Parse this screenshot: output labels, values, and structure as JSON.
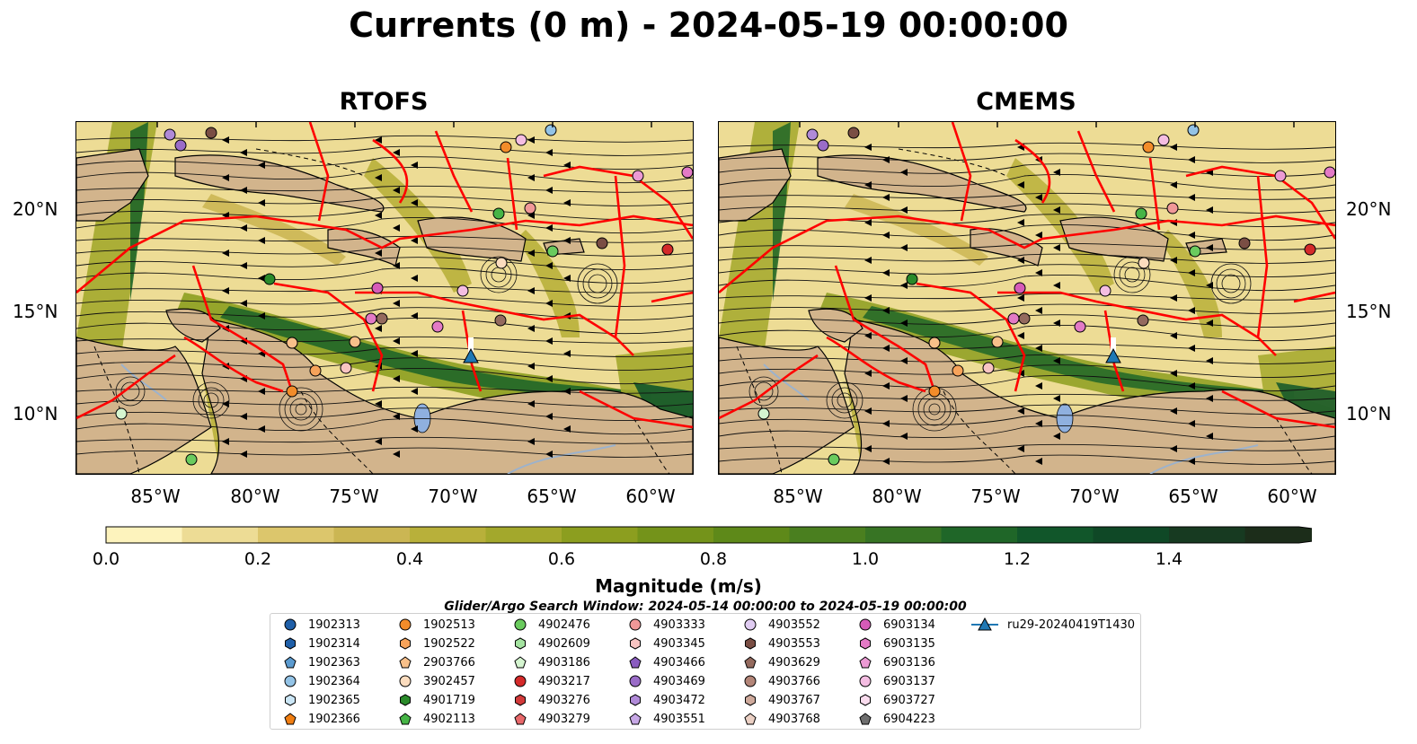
{
  "title": "Currents (0 m) - 2024-05-19 00:00:00",
  "panels": [
    {
      "title": "RTOFS"
    },
    {
      "title": "CMEMS"
    }
  ],
  "lat_labels": [
    "20°N",
    "15°N",
    "10°N"
  ],
  "lon_labels": [
    "85°W",
    "80°W",
    "75°W",
    "70°W",
    "65°W",
    "60°W"
  ],
  "colorbar": {
    "label": "Magnitude (m/s)",
    "ticks": [
      "0.0",
      "0.2",
      "0.4",
      "0.6",
      "0.8",
      "1.0",
      "1.2",
      "1.4"
    ],
    "colors": [
      "#fdf3bd",
      "#eddc95",
      "#dcc66c",
      "#cbb653",
      "#b8b03a",
      "#a3a82c",
      "#8c9e1f",
      "#74931a",
      "#5e8919",
      "#4a7f1f",
      "#377424",
      "#1f6628",
      "#11562a",
      "#0f4826",
      "#173a21",
      "#1c2d1a"
    ]
  },
  "search_window": "Glider/Argo Search Window: 2024-05-14 00:00:00 to 2024-05-19 00:00:00",
  "legend": [
    {
      "label": "1902313",
      "color": "#1f5fa8",
      "marker": "circle"
    },
    {
      "label": "1902314",
      "color": "#1f5fa8",
      "marker": "hexagon"
    },
    {
      "label": "1902363",
      "color": "#5b9bd0",
      "marker": "pentagon"
    },
    {
      "label": "1902364",
      "color": "#93c3e6",
      "marker": "circle"
    },
    {
      "label": "1902365",
      "color": "#cbe6f6",
      "marker": "hexagon"
    },
    {
      "label": "1902366",
      "color": "#f07e12",
      "marker": "pentagon"
    },
    {
      "label": "1902513",
      "color": "#f28c2a",
      "marker": "circle"
    },
    {
      "label": "1902522",
      "color": "#f7a35a",
      "marker": "hexagon"
    },
    {
      "label": "2903766",
      "color": "#f8c08a",
      "marker": "pentagon"
    },
    {
      "label": "3902457",
      "color": "#fbdcbe",
      "marker": "circle"
    },
    {
      "label": "4901719",
      "color": "#2a8a2a",
      "marker": "hexagon"
    },
    {
      "label": "4902113",
      "color": "#46b446",
      "marker": "pentagon"
    },
    {
      "label": "4902476",
      "color": "#6acb5e",
      "marker": "circle"
    },
    {
      "label": "4902609",
      "color": "#a4e3a0",
      "marker": "hexagon"
    },
    {
      "label": "4903186",
      "color": "#d5f5d0",
      "marker": "pentagon"
    },
    {
      "label": "4903217",
      "color": "#d42a2a",
      "marker": "circle"
    },
    {
      "label": "4903276",
      "color": "#d23a3a",
      "marker": "hexagon"
    },
    {
      "label": "4903279",
      "color": "#e8686a",
      "marker": "pentagon"
    },
    {
      "label": "4903333",
      "color": "#f09898",
      "marker": "circle"
    },
    {
      "label": "4903345",
      "color": "#f8c4c2",
      "marker": "hexagon"
    },
    {
      "label": "4903466",
      "color": "#8a5cc0",
      "marker": "pentagon"
    },
    {
      "label": "4903469",
      "color": "#9a6cc8",
      "marker": "circle"
    },
    {
      "label": "4903472",
      "color": "#b08ad8",
      "marker": "hexagon"
    },
    {
      "label": "4903551",
      "color": "#c7a8e6",
      "marker": "pentagon"
    },
    {
      "label": "4903552",
      "color": "#e0ccf2",
      "marker": "circle"
    },
    {
      "label": "4903553",
      "color": "#7a4e44",
      "marker": "hexagon"
    },
    {
      "label": "4903629",
      "color": "#946a5e",
      "marker": "pentagon"
    },
    {
      "label": "4903766",
      "color": "#b38578",
      "marker": "circle"
    },
    {
      "label": "4903767",
      "color": "#cfaa9c",
      "marker": "hexagon"
    },
    {
      "label": "4903768",
      "color": "#ebd0c4",
      "marker": "pentagon"
    },
    {
      "label": "6903134",
      "color": "#d65bb8",
      "marker": "circle"
    },
    {
      "label": "6903135",
      "color": "#e37ac6",
      "marker": "hexagon"
    },
    {
      "label": "6903136",
      "color": "#ec9ad4",
      "marker": "pentagon"
    },
    {
      "label": "6903137",
      "color": "#f4bde2",
      "marker": "circle"
    },
    {
      "label": "6903727",
      "color": "#fadcee",
      "marker": "hexagon"
    },
    {
      "label": "6904223",
      "color": "#6e6e6e",
      "marker": "pentagon"
    },
    {
      "label": "ru29-20240419T1430",
      "color": "#1f78b4",
      "marker": "triangle-line"
    }
  ]
}
